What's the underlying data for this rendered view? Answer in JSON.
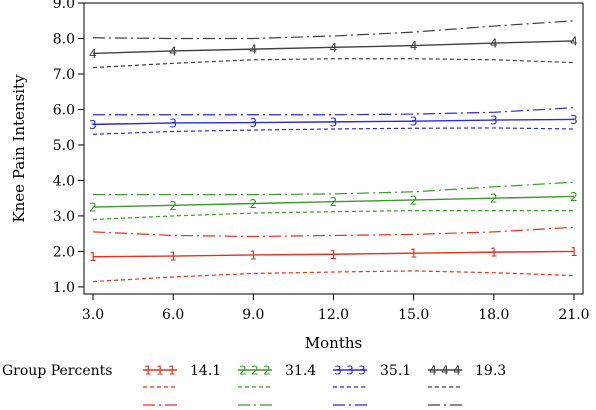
{
  "chart_data": {
    "type": "line",
    "xlabel": "Months",
    "ylabel": "Knee Pain Intensity",
    "x": [
      3.0,
      6.0,
      9.0,
      12.0,
      15.0,
      18.0,
      21.0
    ],
    "x_tick_labels": [
      "3.0",
      "6.0",
      "9.0",
      "12.0",
      "15.0",
      "18.0",
      "21.0"
    ],
    "xlim": [
      3.0,
      21.0
    ],
    "ylim": [
      0.8,
      9.0
    ],
    "y_ticks": [
      1.0,
      2.0,
      3.0,
      4.0,
      5.0,
      6.0,
      7.0,
      8.0,
      9.0
    ],
    "y_tick_labels": [
      "1.0",
      "2.0",
      "3.0",
      "4.0",
      "5.0",
      "6.0",
      "7.0",
      "8.0",
      "9.0"
    ],
    "grid": false,
    "legend_title": "Group Percents",
    "legend_placement": "bottom",
    "series": [
      {
        "marker": "1",
        "name": "14.1",
        "color": "#e8301e",
        "values": [
          1.85,
          1.87,
          1.9,
          1.92,
          1.95,
          1.98,
          2.0
        ],
        "lower": [
          1.15,
          1.28,
          1.38,
          1.42,
          1.45,
          1.4,
          1.32
        ],
        "upper": [
          2.55,
          2.45,
          2.42,
          2.45,
          2.48,
          2.55,
          2.68
        ]
      },
      {
        "marker": "2",
        "name": "31.4",
        "color": "#3a9a2c",
        "values": [
          3.25,
          3.3,
          3.35,
          3.4,
          3.45,
          3.5,
          3.55
        ],
        "lower": [
          2.9,
          3.0,
          3.08,
          3.12,
          3.15,
          3.15,
          3.15
        ],
        "upper": [
          3.6,
          3.6,
          3.6,
          3.62,
          3.68,
          3.82,
          3.95
        ]
      },
      {
        "marker": "3",
        "name": "35.1",
        "color": "#2a2ae0",
        "values": [
          5.58,
          5.62,
          5.63,
          5.65,
          5.67,
          5.7,
          5.72
        ],
        "lower": [
          5.3,
          5.38,
          5.42,
          5.45,
          5.47,
          5.48,
          5.45
        ],
        "upper": [
          5.85,
          5.85,
          5.85,
          5.85,
          5.87,
          5.92,
          6.05
        ]
      },
      {
        "marker": "4",
        "name": "19.3",
        "color": "#404040",
        "values": [
          7.58,
          7.65,
          7.7,
          7.75,
          7.8,
          7.87,
          7.93
        ],
        "lower": [
          7.18,
          7.3,
          7.4,
          7.43,
          7.43,
          7.4,
          7.32
        ],
        "upper": [
          8.02,
          8.0,
          8.0,
          8.07,
          8.18,
          8.35,
          8.5
        ]
      }
    ]
  }
}
